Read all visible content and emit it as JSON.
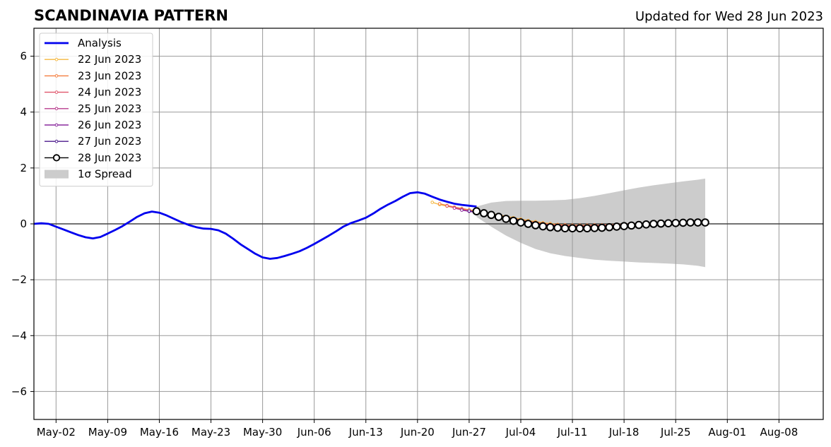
{
  "chart_data": {
    "type": "line",
    "title": "SCANDINAVIA PATTERN",
    "subtitle": "Updated for Wed 28 Jun 2023",
    "xlabel": "",
    "ylabel": "",
    "xlim": [
      "2023-04-29",
      "2023-08-14"
    ],
    "ylim": [
      -7,
      7
    ],
    "x_ticks": [
      "May-02",
      "May-09",
      "May-16",
      "May-23",
      "May-30",
      "Jun-06",
      "Jun-13",
      "Jun-20",
      "Jun-27",
      "Jul-04",
      "Jul-11",
      "Jul-18",
      "Jul-25",
      "Aug-01",
      "Aug-08"
    ],
    "x_tick_dates": [
      "2023-05-02",
      "2023-05-09",
      "2023-05-16",
      "2023-05-23",
      "2023-05-30",
      "2023-06-06",
      "2023-06-13",
      "2023-06-20",
      "2023-06-27",
      "2023-07-04",
      "2023-07-11",
      "2023-07-18",
      "2023-07-25",
      "2023-08-01",
      "2023-08-08"
    ],
    "y_ticks": [
      -6,
      -4,
      -2,
      0,
      2,
      4,
      6
    ],
    "y_tick_labels": [
      "−6",
      "−4",
      "−2",
      "0",
      "2",
      "4",
      "6"
    ],
    "grid": true,
    "legend_position": "top-left",
    "analysis": {
      "name": "Analysis",
      "color": "#0000ee",
      "dates": [
        "2023-04-29",
        "2023-04-30",
        "2023-05-01",
        "2023-05-02",
        "2023-05-03",
        "2023-05-04",
        "2023-05-05",
        "2023-05-06",
        "2023-05-07",
        "2023-05-08",
        "2023-05-09",
        "2023-05-10",
        "2023-05-11",
        "2023-05-12",
        "2023-05-13",
        "2023-05-14",
        "2023-05-15",
        "2023-05-16",
        "2023-05-17",
        "2023-05-18",
        "2023-05-19",
        "2023-05-20",
        "2023-05-21",
        "2023-05-22",
        "2023-05-23",
        "2023-05-24",
        "2023-05-25",
        "2023-05-26",
        "2023-05-27",
        "2023-05-28",
        "2023-05-29",
        "2023-05-30",
        "2023-05-31",
        "2023-06-01",
        "2023-06-02",
        "2023-06-03",
        "2023-06-04",
        "2023-06-05",
        "2023-06-06",
        "2023-06-07",
        "2023-06-08",
        "2023-06-09",
        "2023-06-10",
        "2023-06-11",
        "2023-06-12",
        "2023-06-13",
        "2023-06-14",
        "2023-06-15",
        "2023-06-16",
        "2023-06-17",
        "2023-06-18",
        "2023-06-19",
        "2023-06-20",
        "2023-06-21",
        "2023-06-22",
        "2023-06-23",
        "2023-06-24",
        "2023-06-25",
        "2023-06-26",
        "2023-06-27",
        "2023-06-28"
      ],
      "values": [
        0.0,
        0.02,
        0.0,
        -0.1,
        -0.2,
        -0.3,
        -0.4,
        -0.48,
        -0.52,
        -0.47,
        -0.35,
        -0.22,
        -0.08,
        0.08,
        0.25,
        0.38,
        0.44,
        0.4,
        0.3,
        0.18,
        0.06,
        -0.04,
        -0.12,
        -0.17,
        -0.18,
        -0.23,
        -0.35,
        -0.53,
        -0.73,
        -0.9,
        -1.07,
        -1.2,
        -1.25,
        -1.22,
        -1.15,
        -1.07,
        -0.98,
        -0.86,
        -0.72,
        -0.57,
        -0.42,
        -0.26,
        -0.09,
        0.03,
        0.12,
        0.22,
        0.37,
        0.54,
        0.69,
        0.82,
        0.97,
        1.1,
        1.13,
        1.08,
        0.97,
        0.87,
        0.79,
        0.72,
        0.68,
        0.65,
        0.62
      ]
    },
    "forecasts": [
      {
        "name": "22 Jun 2023",
        "color": "#f5b841",
        "dates": [
          "2023-06-22",
          "2023-06-23",
          "2023-06-24",
          "2023-06-25",
          "2023-06-26",
          "2023-06-27",
          "2023-06-28",
          "2023-06-29",
          "2023-06-30",
          "2023-07-01",
          "2023-07-02",
          "2023-07-03",
          "2023-07-04",
          "2023-07-05",
          "2023-07-06",
          "2023-07-07",
          "2023-07-08",
          "2023-07-09",
          "2023-07-10",
          "2023-07-11",
          "2023-07-12",
          "2023-07-13",
          "2023-07-14",
          "2023-07-15",
          "2023-07-16",
          "2023-07-17",
          "2023-07-18",
          "2023-07-19",
          "2023-07-20"
        ],
        "values": [
          0.77,
          0.69,
          0.63,
          0.58,
          0.54,
          0.5,
          0.46,
          0.42,
          0.37,
          0.32,
          0.27,
          0.22,
          0.17,
          0.12,
          0.08,
          0.04,
          0.01,
          -0.02,
          -0.04,
          -0.05,
          -0.05,
          -0.05,
          -0.05,
          -0.04,
          -0.03,
          -0.02,
          -0.01,
          0.0,
          0.01
        ]
      },
      {
        "name": "23 Jun 2023",
        "color": "#f57e3f",
        "dates": [
          "2023-06-23",
          "2023-06-24",
          "2023-06-25",
          "2023-06-26",
          "2023-06-27",
          "2023-06-28",
          "2023-06-29",
          "2023-06-30",
          "2023-07-01",
          "2023-07-02",
          "2023-07-03",
          "2023-07-04",
          "2023-07-05",
          "2023-07-06",
          "2023-07-07",
          "2023-07-08",
          "2023-07-09",
          "2023-07-10",
          "2023-07-11",
          "2023-07-12",
          "2023-07-13",
          "2023-07-14",
          "2023-07-15",
          "2023-07-16",
          "2023-07-17",
          "2023-07-18",
          "2023-07-19",
          "2023-07-20",
          "2023-07-21"
        ],
        "values": [
          0.72,
          0.66,
          0.6,
          0.55,
          0.5,
          0.45,
          0.4,
          0.35,
          0.3,
          0.25,
          0.2,
          0.15,
          0.1,
          0.06,
          0.02,
          -0.01,
          -0.03,
          -0.04,
          -0.05,
          -0.05,
          -0.05,
          -0.04,
          -0.04,
          -0.03,
          -0.02,
          -0.01,
          0.0,
          0.0,
          0.01
        ]
      },
      {
        "name": "24 Jun 2023",
        "color": "#e0556b",
        "dates": [
          "2023-06-24",
          "2023-06-25",
          "2023-06-26",
          "2023-06-27",
          "2023-06-28",
          "2023-06-29",
          "2023-06-30",
          "2023-07-01",
          "2023-07-02",
          "2023-07-03",
          "2023-07-04",
          "2023-07-05",
          "2023-07-06",
          "2023-07-07",
          "2023-07-08",
          "2023-07-09",
          "2023-07-10",
          "2023-07-11",
          "2023-07-12",
          "2023-07-13",
          "2023-07-14",
          "2023-07-15",
          "2023-07-16",
          "2023-07-17",
          "2023-07-18",
          "2023-07-19",
          "2023-07-20",
          "2023-07-21",
          "2023-07-22"
        ],
        "values": [
          0.64,
          0.58,
          0.52,
          0.46,
          0.41,
          0.36,
          0.31,
          0.26,
          0.21,
          0.16,
          0.11,
          0.07,
          0.03,
          0.0,
          -0.03,
          -0.05,
          -0.06,
          -0.07,
          -0.07,
          -0.07,
          -0.06,
          -0.05,
          -0.04,
          -0.03,
          -0.02,
          -0.01,
          0.0,
          0.01,
          0.01
        ]
      },
      {
        "name": "25 Jun 2023",
        "color": "#b83c8e",
        "dates": [
          "2023-06-25",
          "2023-06-26",
          "2023-06-27",
          "2023-06-28",
          "2023-06-29",
          "2023-06-30",
          "2023-07-01",
          "2023-07-02",
          "2023-07-03",
          "2023-07-04",
          "2023-07-05",
          "2023-07-06",
          "2023-07-07",
          "2023-07-08",
          "2023-07-09",
          "2023-07-10",
          "2023-07-11",
          "2023-07-12",
          "2023-07-13",
          "2023-07-14",
          "2023-07-15",
          "2023-07-16",
          "2023-07-17",
          "2023-07-18",
          "2023-07-19",
          "2023-07-20",
          "2023-07-21",
          "2023-07-22",
          "2023-07-23"
        ],
        "values": [
          0.56,
          0.5,
          0.45,
          0.4,
          0.35,
          0.3,
          0.25,
          0.2,
          0.15,
          0.1,
          0.06,
          0.02,
          -0.02,
          -0.05,
          -0.07,
          -0.09,
          -0.1,
          -0.1,
          -0.1,
          -0.09,
          -0.08,
          -0.07,
          -0.06,
          -0.05,
          -0.03,
          -0.02,
          -0.01,
          0.0,
          0.01
        ]
      },
      {
        "name": "26 Jun 2023",
        "color": "#8a2a9e",
        "dates": [
          "2023-06-26",
          "2023-06-27",
          "2023-06-28",
          "2023-06-29",
          "2023-06-30",
          "2023-07-01",
          "2023-07-02",
          "2023-07-03",
          "2023-07-04",
          "2023-07-05",
          "2023-07-06",
          "2023-07-07",
          "2023-07-08",
          "2023-07-09",
          "2023-07-10",
          "2023-07-11",
          "2023-07-12",
          "2023-07-13",
          "2023-07-14",
          "2023-07-15",
          "2023-07-16",
          "2023-07-17",
          "2023-07-18",
          "2023-07-19",
          "2023-07-20",
          "2023-07-21",
          "2023-07-22",
          "2023-07-23",
          "2023-07-24"
        ],
        "values": [
          0.49,
          0.45,
          0.41,
          0.36,
          0.31,
          0.26,
          0.21,
          0.16,
          0.11,
          0.06,
          0.02,
          -0.02,
          -0.06,
          -0.09,
          -0.11,
          -0.13,
          -0.14,
          -0.14,
          -0.13,
          -0.12,
          -0.11,
          -0.09,
          -0.08,
          -0.06,
          -0.05,
          -0.03,
          -0.02,
          -0.01,
          0.0
        ]
      },
      {
        "name": "27 Jun 2023",
        "color": "#4b1a8c",
        "dates": [
          "2023-06-27",
          "2023-06-28",
          "2023-06-29",
          "2023-06-30",
          "2023-07-01",
          "2023-07-02",
          "2023-07-03",
          "2023-07-04",
          "2023-07-05",
          "2023-07-06",
          "2023-07-07",
          "2023-07-08",
          "2023-07-09",
          "2023-07-10",
          "2023-07-11",
          "2023-07-12",
          "2023-07-13",
          "2023-07-14",
          "2023-07-15",
          "2023-07-16",
          "2023-07-17",
          "2023-07-18",
          "2023-07-19",
          "2023-07-20",
          "2023-07-21",
          "2023-07-22",
          "2023-07-23",
          "2023-07-24",
          "2023-07-25"
        ],
        "values": [
          0.46,
          0.43,
          0.38,
          0.33,
          0.28,
          0.23,
          0.18,
          0.12,
          0.07,
          0.02,
          -0.03,
          -0.07,
          -0.11,
          -0.14,
          -0.16,
          -0.17,
          -0.17,
          -0.16,
          -0.15,
          -0.13,
          -0.11,
          -0.09,
          -0.07,
          -0.05,
          -0.03,
          -0.02,
          -0.01,
          0.0,
          0.01
        ]
      },
      {
        "name": "28 Jun 2023",
        "color": "#000000",
        "dates": [
          "2023-06-28",
          "2023-06-29",
          "2023-06-30",
          "2023-07-01",
          "2023-07-02",
          "2023-07-03",
          "2023-07-04",
          "2023-07-05",
          "2023-07-06",
          "2023-07-07",
          "2023-07-08",
          "2023-07-09",
          "2023-07-10",
          "2023-07-11",
          "2023-07-12",
          "2023-07-13",
          "2023-07-14",
          "2023-07-15",
          "2023-07-16",
          "2023-07-17",
          "2023-07-18",
          "2023-07-19",
          "2023-07-20",
          "2023-07-21",
          "2023-07-22",
          "2023-07-23",
          "2023-07-24",
          "2023-07-25",
          "2023-07-26",
          "2023-07-27",
          "2023-07-28",
          "2023-07-29"
        ],
        "values": [
          0.45,
          0.38,
          0.32,
          0.25,
          0.18,
          0.11,
          0.05,
          0.0,
          -0.05,
          -0.09,
          -0.12,
          -0.14,
          -0.16,
          -0.16,
          -0.16,
          -0.16,
          -0.15,
          -0.14,
          -0.12,
          -0.1,
          -0.08,
          -0.06,
          -0.04,
          -0.02,
          0.0,
          0.01,
          0.02,
          0.03,
          0.04,
          0.05,
          0.05,
          0.05
        ]
      }
    ],
    "spread": {
      "name": "1σ Spread",
      "color": "#cccccc",
      "dates": [
        "2023-06-28",
        "2023-06-30",
        "2023-07-02",
        "2023-07-04",
        "2023-07-06",
        "2023-07-08",
        "2023-07-10",
        "2023-07-12",
        "2023-07-14",
        "2023-07-16",
        "2023-07-18",
        "2023-07-20",
        "2023-07-22",
        "2023-07-24",
        "2023-07-26",
        "2023-07-28",
        "2023-07-29"
      ],
      "upper": [
        0.62,
        0.76,
        0.82,
        0.83,
        0.83,
        0.84,
        0.86,
        0.92,
        1.0,
        1.1,
        1.2,
        1.3,
        1.38,
        1.45,
        1.52,
        1.58,
        1.62
      ],
      "lower": [
        0.25,
        -0.1,
        -0.42,
        -0.68,
        -0.9,
        -1.05,
        -1.15,
        -1.22,
        -1.28,
        -1.32,
        -1.35,
        -1.38,
        -1.4,
        -1.42,
        -1.45,
        -1.5,
        -1.55
      ]
    },
    "zero_line": 0
  },
  "legend": [
    {
      "label": "Analysis",
      "kind": "line",
      "color": "#0000ee"
    },
    {
      "label": "22 Jun 2023",
      "kind": "line-dot",
      "color": "#f5b841"
    },
    {
      "label": "23 Jun 2023",
      "kind": "line-dot",
      "color": "#f57e3f"
    },
    {
      "label": "24 Jun 2023",
      "kind": "line-dot",
      "color": "#e0556b"
    },
    {
      "label": "25 Jun 2023",
      "kind": "line-dot",
      "color": "#b83c8e"
    },
    {
      "label": "26 Jun 2023",
      "kind": "line-dot",
      "color": "#8a2a9e"
    },
    {
      "label": "27 Jun 2023",
      "kind": "line-dot",
      "color": "#4b1a8c"
    },
    {
      "label": "28 Jun 2023",
      "kind": "line-circle",
      "color": "#000000"
    },
    {
      "label": "1σ Spread",
      "kind": "patch",
      "color": "#cccccc"
    }
  ]
}
